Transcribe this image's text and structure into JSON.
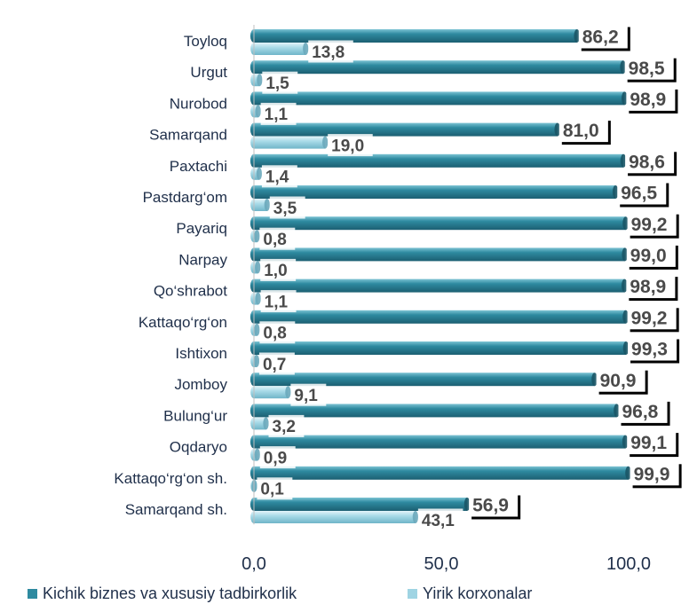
{
  "chart_data": {
    "type": "bar",
    "orientation": "horizontal",
    "categories": [
      "Toyloq",
      "Urgut",
      "Nurobod",
      "Samarqand",
      "Paxtachi",
      "Pastdarg‘om",
      "Payariq",
      "Narpay",
      "Qo‘shrabot",
      "Kattaqo‘rg‘on",
      "Ishtixon",
      "Jomboy",
      "Bulung‘ur",
      "Oqdaryo",
      "Kattaqo‘rg‘on  sh.",
      "Samarqand sh."
    ],
    "series": [
      {
        "name": "Kichik biznes va xususiy tadbirkorlik",
        "color": "#2e8aa0",
        "values": [
          86.2,
          98.5,
          98.9,
          81.0,
          98.6,
          96.5,
          99.2,
          99.0,
          98.9,
          99.2,
          99.3,
          90.9,
          96.8,
          99.1,
          99.9,
          56.9
        ],
        "labels": [
          "86,2",
          "98,5",
          "98,9",
          "81,0",
          "98,6",
          "96,5",
          "99,2",
          "99,0",
          "98,9",
          "99,2",
          "99,3",
          "90,9",
          "96,8",
          "99,1",
          "99,9",
          "56,9"
        ]
      },
      {
        "name": "Yirik korxonalar",
        "color": "#9fd4e3",
        "values": [
          13.8,
          1.5,
          1.1,
          19.0,
          1.4,
          3.5,
          0.8,
          1.0,
          1.1,
          0.8,
          0.7,
          9.1,
          3.2,
          0.9,
          0.1,
          43.1
        ],
        "labels": [
          "13,8",
          "1,5",
          "1,1",
          "19,0",
          "1,4",
          "3,5",
          "0,8",
          "1,0",
          "1,1",
          "0,8",
          "0,7",
          "9,1",
          "3,2",
          "0,9",
          "0,1",
          "43,1"
        ]
      }
    ],
    "x_ticks": [
      0,
      50,
      100
    ],
    "x_tick_labels": [
      "0,0",
      "50,0",
      "100,0"
    ],
    "xlim": [
      0,
      100
    ],
    "legend_position": "bottom",
    "grid": false
  }
}
